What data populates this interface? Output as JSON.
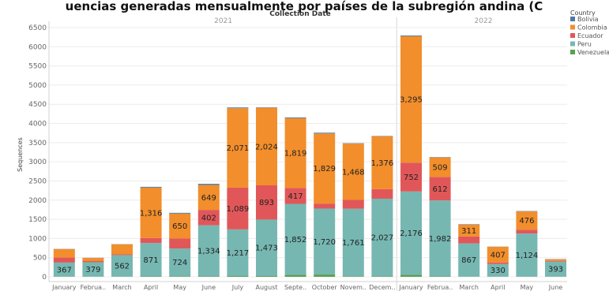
{
  "chart_data": {
    "type": "bar",
    "stacked": true,
    "title": "uencias generadas mensualmente por países de la subregión andina (C",
    "column_header": "Collection Date",
    "years": [
      {
        "label": "2021",
        "start": 0,
        "end": 11
      },
      {
        "label": "2022",
        "start": 12,
        "end": 17
      }
    ],
    "categories": [
      "January",
      "Februa..",
      "March",
      "April",
      "May",
      "June",
      "July",
      "August",
      "Septe..",
      "October",
      "Novem..",
      "Decem..",
      "January",
      "Februa..",
      "March",
      "April",
      "May",
      "June"
    ],
    "ylabel": "Sequences",
    "ylim": [
      0,
      6500
    ],
    "yticks": [
      0,
      500,
      1000,
      1500,
      2000,
      2500,
      3000,
      3500,
      4000,
      4500,
      5000,
      5500,
      6000,
      6500
    ],
    "ytick_labels": [
      "0",
      "500",
      "1000",
      "1500",
      "2000",
      "2500",
      "3000",
      "3500",
      "4000",
      "4500",
      "5000",
      "5500",
      "6000",
      "6500"
    ],
    "legend": {
      "title": "Country",
      "position": "right",
      "items": [
        "Bolivia",
        "Colombia",
        "Ecuador",
        "Peru",
        "Venezuela"
      ]
    },
    "colors": {
      "Bolivia": "#4e79a7",
      "Colombia": "#f28e2b",
      "Ecuador": "#e15759",
      "Peru": "#76b7b2",
      "Venezuela": "#59a14f"
    },
    "series": [
      {
        "name": "Venezuela",
        "values": [
          5,
          3,
          5,
          10,
          15,
          10,
          20,
          20,
          50,
          60,
          15,
          10,
          50,
          10,
          5,
          5,
          5,
          5
        ]
      },
      {
        "name": "Peru",
        "values": [
          367,
          379,
          562,
          871,
          724,
          1334,
          1217,
          1473,
          1852,
          1720,
          1761,
          2027,
          2176,
          1982,
          867,
          330,
          1124,
          393
        ]
      },
      {
        "name": "Ecuador",
        "values": [
          130,
          30,
          20,
          130,
          260,
          402,
          1089,
          893,
          417,
          130,
          230,
          250,
          752,
          612,
          180,
          40,
          100,
          20
        ]
      },
      {
        "name": "Colombia",
        "values": [
          220,
          80,
          260,
          1316,
          650,
          649,
          2071,
          2024,
          1819,
          1829,
          1468,
          1376,
          3295,
          509,
          311,
          407,
          476,
          40
        ]
      },
      {
        "name": "Bolivia",
        "values": [
          5,
          5,
          5,
          20,
          20,
          30,
          20,
          10,
          20,
          20,
          10,
          10,
          20,
          10,
          10,
          5,
          10,
          5
        ]
      }
    ],
    "data_labels": [
      {
        "series": "Peru",
        "values": [
          "367",
          "379",
          "562",
          "871",
          "724",
          "1,334",
          "1,217",
          "1,473",
          "1,852",
          "1,720",
          "1,761",
          "2,027",
          "2,176",
          "1,982",
          "867",
          "330",
          "1,124",
          "393"
        ]
      },
      {
        "series": "Ecuador",
        "values": [
          "",
          "",
          "",
          "",
          "",
          "402",
          "1,089",
          "893",
          "417",
          "",
          "",
          "",
          "752",
          "612",
          "",
          "",
          "",
          ""
        ]
      },
      {
        "series": "Colombia",
        "values": [
          "",
          "",
          "",
          "1,316",
          "650",
          "649",
          "2,071",
          "2,024",
          "1,819",
          "1,829",
          "1,468",
          "1,376",
          "3,295",
          "509",
          "311",
          "407",
          "476",
          ""
        ]
      }
    ],
    "grid": true
  }
}
